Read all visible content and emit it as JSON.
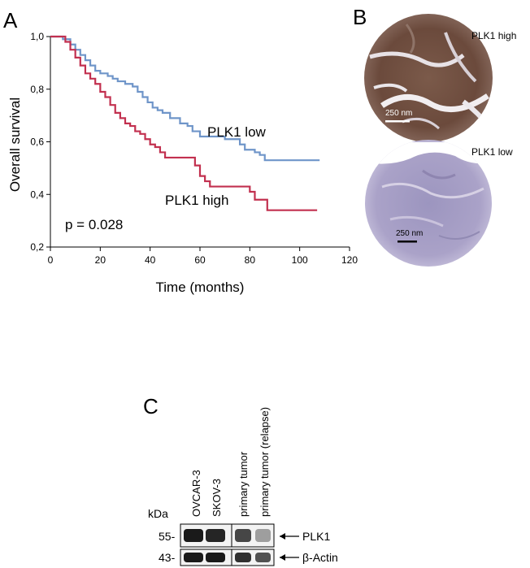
{
  "panel_labels": {
    "a": "A",
    "b": "B",
    "c": "C"
  },
  "colors": {
    "low": "#6f95c9",
    "high": "#c2304f",
    "axis": "#000000"
  },
  "chart_data": {
    "type": "line",
    "subtype": "kaplan-meier",
    "xlabel": "Time (months)",
    "ylabel": "Overall survival",
    "xlim": [
      0,
      120
    ],
    "ylim": [
      0.2,
      1.0
    ],
    "x_ticks": [
      0,
      20,
      40,
      60,
      80,
      100,
      120
    ],
    "y_ticks": [
      0.2,
      0.4,
      0.6,
      0.8,
      1.0
    ],
    "x_tick_labels": [
      "0",
      "20",
      "40",
      "60",
      "80",
      "100",
      "120"
    ],
    "y_tick_labels": [
      "0,2",
      "0,4",
      "0,6",
      "0,8",
      "1,0"
    ],
    "annotation": "p = 0.028",
    "series": [
      {
        "name": "PLK1 low",
        "color": "#6f95c9",
        "points": [
          [
            0,
            1.0
          ],
          [
            5,
            0.99
          ],
          [
            8,
            0.97
          ],
          [
            10,
            0.95
          ],
          [
            12,
            0.93
          ],
          [
            14,
            0.91
          ],
          [
            16,
            0.89
          ],
          [
            18,
            0.87
          ],
          [
            20,
            0.86
          ],
          [
            23,
            0.85
          ],
          [
            25,
            0.84
          ],
          [
            27,
            0.83
          ],
          [
            30,
            0.82
          ],
          [
            33,
            0.81
          ],
          [
            35,
            0.79
          ],
          [
            37,
            0.77
          ],
          [
            39,
            0.75
          ],
          [
            41,
            0.73
          ],
          [
            43,
            0.72
          ],
          [
            45,
            0.71
          ],
          [
            48,
            0.69
          ],
          [
            52,
            0.67
          ],
          [
            55,
            0.66
          ],
          [
            57,
            0.64
          ],
          [
            60,
            0.62
          ],
          [
            65,
            0.62
          ],
          [
            70,
            0.61
          ],
          [
            76,
            0.59
          ],
          [
            78,
            0.57
          ],
          [
            82,
            0.56
          ],
          [
            84,
            0.55
          ],
          [
            86,
            0.53
          ],
          [
            95,
            0.53
          ],
          [
            101,
            0.53
          ],
          [
            108,
            0.53
          ]
        ]
      },
      {
        "name": "PLK1 high",
        "color": "#c2304f",
        "points": [
          [
            0,
            1.0
          ],
          [
            4,
            1.0
          ],
          [
            6,
            0.98
          ],
          [
            8,
            0.95
          ],
          [
            10,
            0.92
          ],
          [
            12,
            0.89
          ],
          [
            14,
            0.86
          ],
          [
            16,
            0.84
          ],
          [
            18,
            0.82
          ],
          [
            20,
            0.79
          ],
          [
            22,
            0.77
          ],
          [
            24,
            0.74
          ],
          [
            26,
            0.71
          ],
          [
            28,
            0.69
          ],
          [
            30,
            0.67
          ],
          [
            32,
            0.66
          ],
          [
            34,
            0.64
          ],
          [
            36,
            0.63
          ],
          [
            38,
            0.61
          ],
          [
            40,
            0.59
          ],
          [
            42,
            0.58
          ],
          [
            44,
            0.56
          ],
          [
            46,
            0.54
          ],
          [
            51,
            0.54
          ],
          [
            56,
            0.54
          ],
          [
            58,
            0.51
          ],
          [
            60,
            0.47
          ],
          [
            62,
            0.45
          ],
          [
            64,
            0.43
          ],
          [
            72,
            0.43
          ],
          [
            80,
            0.41
          ],
          [
            82,
            0.38
          ],
          [
            87,
            0.34
          ],
          [
            96,
            0.34
          ],
          [
            107,
            0.34
          ]
        ]
      }
    ],
    "series_labels": [
      "PLK1 low",
      "PLK1 high"
    ]
  },
  "panel_b": {
    "high_label": "PLK1 high",
    "low_label": "PLK1 low",
    "scale_high": "250 nm",
    "scale_low": "250 nm"
  },
  "panel_c": {
    "kda_label": "kDa",
    "lanes": [
      "OVCAR-3",
      "SKOV-3",
      "primary tumor",
      "primary tumor (relapse)"
    ],
    "rows": [
      {
        "marker": "55-",
        "protein": "PLK1",
        "intensities": [
          0.95,
          0.9,
          0.75,
          0.35
        ]
      },
      {
        "marker": "43-",
        "protein": "β-Actin",
        "intensities": [
          0.95,
          0.95,
          0.85,
          0.7
        ]
      }
    ]
  }
}
